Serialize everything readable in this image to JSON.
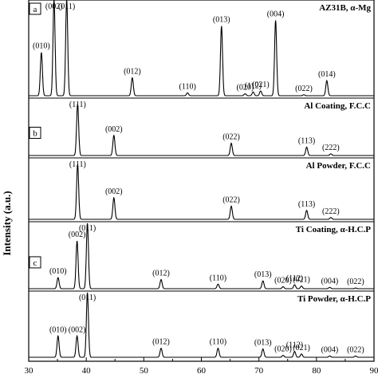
{
  "chart_data": {
    "type": "line",
    "title": "",
    "xlabel": "",
    "ylabel": "Intensity (a.u.)",
    "xlim": [
      30,
      90
    ],
    "x_ticks": [
      30,
      40,
      50,
      60,
      70,
      80,
      90
    ],
    "grid": false,
    "legend": "none",
    "panels": [
      {
        "label": "AZ31B, α-Mg",
        "marker": "a",
        "peaks": [
          {
            "x": 32.2,
            "h": 0.46,
            "hkl": "(010)"
          },
          {
            "x": 34.4,
            "h": 1.02,
            "hkl": "(002)"
          },
          {
            "x": 36.6,
            "h": 1.02,
            "hkl": "(011)"
          },
          {
            "x": 48.0,
            "h": 0.19,
            "hkl": "(012)"
          },
          {
            "x": 57.6,
            "h": 0.03,
            "hkl": "(110)"
          },
          {
            "x": 63.5,
            "h": 0.74,
            "hkl": "(013)"
          },
          {
            "x": 67.6,
            "h": 0.02,
            "hkl": "(020)"
          },
          {
            "x": 69.0,
            "h": 0.04,
            "hkl": "(112)"
          },
          {
            "x": 70.3,
            "h": 0.05,
            "hkl": "(021)"
          },
          {
            "x": 72.9,
            "h": 0.8,
            "hkl": "(004)"
          },
          {
            "x": 77.8,
            "h": 0.01,
            "hkl": "(022)"
          },
          {
            "x": 81.8,
            "h": 0.16,
            "hkl": "(014)"
          }
        ]
      },
      {
        "label": "Al Coating, F.C.C",
        "marker": "b",
        "peaks": [
          {
            "x": 38.5,
            "h": 0.92,
            "hkl": "(111)"
          },
          {
            "x": 44.8,
            "h": 0.36,
            "hkl": "(002)"
          },
          {
            "x": 65.2,
            "h": 0.22,
            "hkl": "(022)"
          },
          {
            "x": 78.3,
            "h": 0.15,
            "hkl": "(113)"
          },
          {
            "x": 82.5,
            "h": 0.03,
            "hkl": "(222)"
          }
        ]
      },
      {
        "label": "Al Powder, F.C.C",
        "marker": "",
        "peaks": [
          {
            "x": 38.5,
            "h": 0.92,
            "hkl": "(111)"
          },
          {
            "x": 44.8,
            "h": 0.36,
            "hkl": "(002)"
          },
          {
            "x": 65.2,
            "h": 0.22,
            "hkl": "(022)"
          },
          {
            "x": 78.3,
            "h": 0.15,
            "hkl": "(113)"
          },
          {
            "x": 82.5,
            "h": 0.03,
            "hkl": "(222)"
          }
        ]
      },
      {
        "label": "Ti Coating, α-H.C.P",
        "marker": "c",
        "peaks": [
          {
            "x": 35.1,
            "h": 0.17,
            "hkl": "(010)"
          },
          {
            "x": 38.4,
            "h": 0.73,
            "hkl": "(002)"
          },
          {
            "x": 40.2,
            "h": 1.0,
            "hkl": "(011)"
          },
          {
            "x": 53.0,
            "h": 0.14,
            "hkl": "(012)"
          },
          {
            "x": 62.9,
            "h": 0.07,
            "hkl": "(110)"
          },
          {
            "x": 70.7,
            "h": 0.12,
            "hkl": "(013)"
          },
          {
            "x": 74.2,
            "h": 0.03,
            "hkl": "(020)"
          },
          {
            "x": 76.2,
            "h": 0.06,
            "hkl": "(112)"
          },
          {
            "x": 77.4,
            "h": 0.04,
            "hkl": "(021)"
          },
          {
            "x": 82.3,
            "h": 0.02,
            "hkl": "(004)"
          },
          {
            "x": 86.8,
            "h": 0.01,
            "hkl": "(022)"
          }
        ]
      },
      {
        "label": "Ti Powder, α-H.C.P",
        "marker": "",
        "peaks": [
          {
            "x": 35.1,
            "h": 0.33,
            "hkl": "(010)"
          },
          {
            "x": 38.4,
            "h": 0.33,
            "hkl": "(002)"
          },
          {
            "x": 40.2,
            "h": 1.0,
            "hkl": "(011)"
          },
          {
            "x": 53.0,
            "h": 0.14,
            "hkl": "(012)"
          },
          {
            "x": 62.9,
            "h": 0.14,
            "hkl": "(110)"
          },
          {
            "x": 70.7,
            "h": 0.13,
            "hkl": "(013)"
          },
          {
            "x": 74.2,
            "h": 0.03,
            "hkl": "(020)"
          },
          {
            "x": 76.2,
            "h": 0.09,
            "hkl": "(112)"
          },
          {
            "x": 77.4,
            "h": 0.05,
            "hkl": "(021)"
          },
          {
            "x": 82.3,
            "h": 0.02,
            "hkl": "(004)"
          },
          {
            "x": 86.8,
            "h": 0.02,
            "hkl": "(022)"
          }
        ]
      }
    ]
  }
}
